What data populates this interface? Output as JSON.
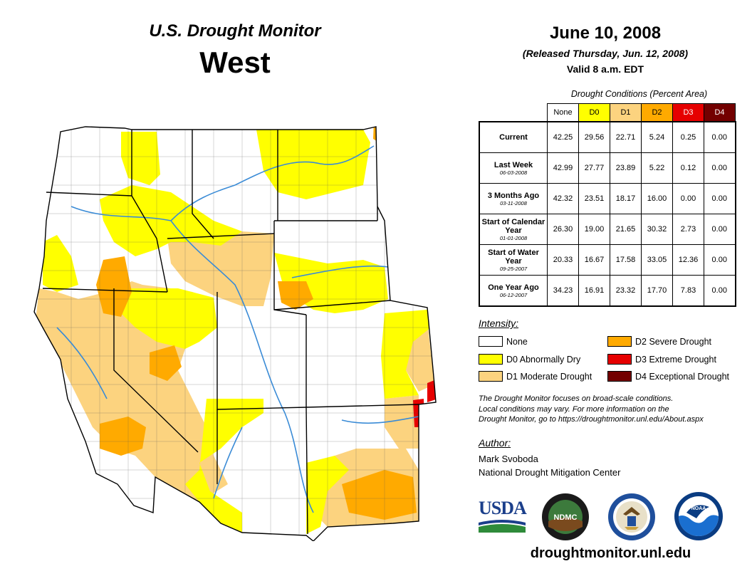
{
  "header": {
    "subtitle": "U.S. Drought Monitor",
    "region": "West",
    "date": "June 10, 2008",
    "released": "(Released Thursday, Jun. 12, 2008)",
    "valid": "Valid 8 a.m. EDT"
  },
  "table": {
    "caption": "Drought Conditions (Percent Area)",
    "columns": [
      {
        "label": "None",
        "color": "#ffffff",
        "text_color": "#000000"
      },
      {
        "label": "D0",
        "color": "#ffff00",
        "text_color": "#000000"
      },
      {
        "label": "D1",
        "color": "#fcd37f",
        "text_color": "#000000"
      },
      {
        "label": "D2",
        "color": "#ffaa00",
        "text_color": "#000000"
      },
      {
        "label": "D3",
        "color": "#e60000",
        "text_color": "#ffffff"
      },
      {
        "label": "D4",
        "color": "#730000",
        "text_color": "#ffffff"
      }
    ],
    "rows": [
      {
        "label": "Current",
        "date": "",
        "values": [
          "42.25",
          "29.56",
          "22.71",
          "5.24",
          "0.25",
          "0.00"
        ]
      },
      {
        "label": "Last Week",
        "date": "06-03-2008",
        "values": [
          "42.99",
          "27.77",
          "23.89",
          "5.22",
          "0.12",
          "0.00"
        ]
      },
      {
        "label": "3 Months Ago",
        "date": "03-11-2008",
        "values": [
          "42.32",
          "23.51",
          "18.17",
          "16.00",
          "0.00",
          "0.00"
        ]
      },
      {
        "label": "Start of Calendar Year",
        "date": "01-01-2008",
        "values": [
          "26.30",
          "19.00",
          "21.65",
          "30.32",
          "2.73",
          "0.00"
        ]
      },
      {
        "label": "Start of Water Year",
        "date": "09-25-2007",
        "values": [
          "20.33",
          "16.67",
          "17.58",
          "33.05",
          "12.36",
          "0.00"
        ]
      },
      {
        "label": "One Year Ago",
        "date": "06-12-2007",
        "values": [
          "34.23",
          "16.91",
          "23.32",
          "17.70",
          "7.83",
          "0.00"
        ]
      }
    ]
  },
  "legend": {
    "heading": "Intensity:",
    "items": [
      {
        "label": "None",
        "color": "#ffffff"
      },
      {
        "label": "D0 Abnormally Dry",
        "color": "#ffff00"
      },
      {
        "label": "D1 Moderate Drought",
        "color": "#fcd37f"
      },
      {
        "label": "D2 Severe Drought",
        "color": "#ffaa00"
      },
      {
        "label": "D3 Extreme Drought",
        "color": "#e60000"
      },
      {
        "label": "D4 Exceptional Drought",
        "color": "#730000"
      }
    ]
  },
  "note": {
    "line1": "The Drought Monitor focuses on broad-scale conditions.",
    "line2": "Local conditions may vary. For more information on the",
    "line3": "Drought Monitor, go to https://droughtmonitor.unl.edu/About.aspx"
  },
  "author": {
    "heading": "Author:",
    "name": "Mark Svoboda",
    "org": "National Drought Mitigation Center"
  },
  "logos": {
    "usda": "USDA",
    "ndmc": "NDMC",
    "noaa": "NOAA"
  },
  "website": "droughtmonitor.unl.edu"
}
